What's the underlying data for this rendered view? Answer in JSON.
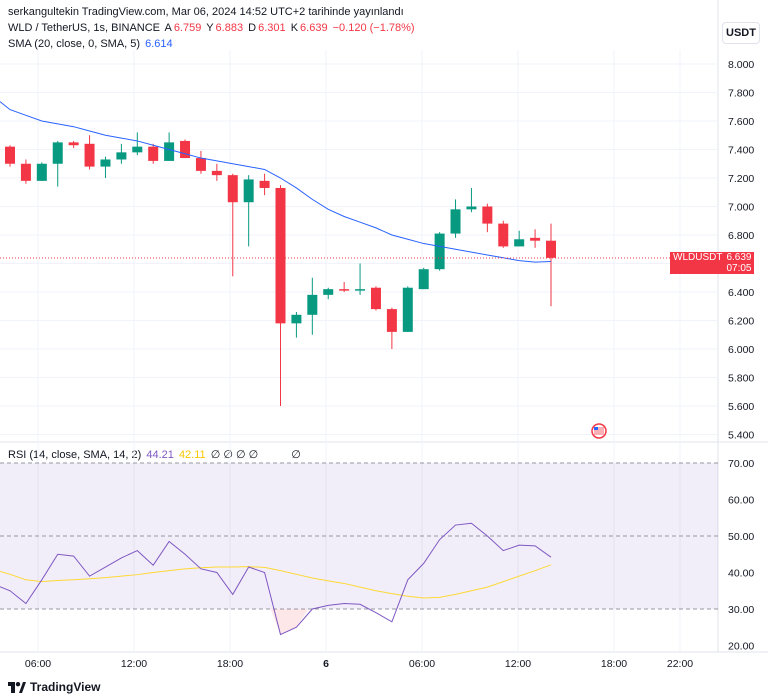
{
  "header": {
    "publish_text": "serkangultekin TradingView.com, Mar 06, 2024 14:52 UTC+2 tarihinde yayınlandı"
  },
  "legend": {
    "symbol": "WLD / TetherUS, 1s, BINANCE",
    "open_label": "A",
    "open": "6.759",
    "high_label": "Y",
    "high": "6.883",
    "low_label": "D",
    "low": "6.301",
    "close_label": "K",
    "close": "6.639",
    "change": "−0.120 (−1.78%)",
    "sma_label": "SMA (20, close, 0, SMA, 5)",
    "sma_value": "6.614"
  },
  "currency_button": "USDT",
  "last_price_tag": {
    "symbol": "WLDUSDT",
    "price": "6.639",
    "countdown": "07:05"
  },
  "rsi_legend": {
    "label": "RSI (14, close, SMA, 14, 2)",
    "rsi_value": "44.21",
    "ma_value": "42.11",
    "placeholders": "∅ ∅ ∅ ∅",
    "placeholder2": "∅"
  },
  "footer": {
    "brand": "TradingView"
  },
  "colors": {
    "up": "#089981",
    "down": "#f23645",
    "sma": "#2962ff",
    "rsi": "#7e57c2",
    "rsi_ma": "#fdd835",
    "rsi_band": "#7e57c2"
  },
  "chart_data": [
    {
      "type": "candlestick",
      "title": "WLD / TetherUS, 1s, BINANCE",
      "ylim": [
        5.35,
        8.1
      ],
      "y_ticks": [
        "8.000",
        "7.800",
        "7.600",
        "7.400",
        "7.200",
        "7.000",
        "6.800",
        "6.600",
        "6.400",
        "6.200",
        "6.000",
        "5.800",
        "5.600",
        "5.400"
      ],
      "x_ticks": [
        "06:00",
        "12:00",
        "18:00",
        "6",
        "06:00",
        "12:00",
        "18:00",
        "22:00"
      ],
      "candles": [
        {
          "o": 7.42,
          "h": 7.43,
          "l": 7.28,
          "c": 7.3
        },
        {
          "o": 7.3,
          "h": 7.33,
          "l": 7.16,
          "c": 7.18
        },
        {
          "o": 7.18,
          "h": 7.31,
          "l": 7.18,
          "c": 7.3
        },
        {
          "o": 7.3,
          "h": 7.46,
          "l": 7.14,
          "c": 7.45
        },
        {
          "o": 7.45,
          "h": 7.46,
          "l": 7.41,
          "c": 7.43
        },
        {
          "o": 7.44,
          "h": 7.5,
          "l": 7.26,
          "c": 7.28
        },
        {
          "o": 7.28,
          "h": 7.35,
          "l": 7.2,
          "c": 7.33
        },
        {
          "o": 7.33,
          "h": 7.44,
          "l": 7.3,
          "c": 7.38
        },
        {
          "o": 7.38,
          "h": 7.52,
          "l": 7.36,
          "c": 7.42
        },
        {
          "o": 7.42,
          "h": 7.44,
          "l": 7.3,
          "c": 7.32
        },
        {
          "o": 7.32,
          "h": 7.52,
          "l": 7.32,
          "c": 7.45
        },
        {
          "o": 7.46,
          "h": 7.47,
          "l": 7.34,
          "c": 7.34
        },
        {
          "o": 7.34,
          "h": 7.39,
          "l": 7.23,
          "c": 7.25
        },
        {
          "o": 7.25,
          "h": 7.3,
          "l": 7.18,
          "c": 7.22
        },
        {
          "o": 7.22,
          "h": 7.23,
          "l": 6.51,
          "c": 7.03
        },
        {
          "o": 7.03,
          "h": 7.22,
          "l": 6.72,
          "c": 7.19
        },
        {
          "o": 7.18,
          "h": 7.23,
          "l": 7.08,
          "c": 7.13
        },
        {
          "o": 7.13,
          "h": 7.15,
          "l": 5.6,
          "c": 6.18
        },
        {
          "o": 6.18,
          "h": 6.26,
          "l": 6.08,
          "c": 6.24
        },
        {
          "o": 6.24,
          "h": 6.5,
          "l": 6.1,
          "c": 6.38
        },
        {
          "o": 6.38,
          "h": 6.43,
          "l": 6.35,
          "c": 6.42
        },
        {
          "o": 6.42,
          "h": 6.47,
          "l": 6.4,
          "c": 6.41
        },
        {
          "o": 6.42,
          "h": 6.6,
          "l": 6.38,
          "c": 6.42
        },
        {
          "o": 6.43,
          "h": 6.44,
          "l": 6.27,
          "c": 6.28
        },
        {
          "o": 6.28,
          "h": 6.29,
          "l": 6.0,
          "c": 6.12
        },
        {
          "o": 6.12,
          "h": 6.44,
          "l": 6.12,
          "c": 6.43
        },
        {
          "o": 6.42,
          "h": 6.57,
          "l": 6.42,
          "c": 6.56
        },
        {
          "o": 6.56,
          "h": 6.82,
          "l": 6.55,
          "c": 6.81
        },
        {
          "o": 6.81,
          "h": 7.05,
          "l": 6.78,
          "c": 6.98
        },
        {
          "o": 6.98,
          "h": 7.13,
          "l": 6.96,
          "c": 7.0
        },
        {
          "o": 7.0,
          "h": 7.02,
          "l": 6.82,
          "c": 6.88
        },
        {
          "o": 6.88,
          "h": 6.9,
          "l": 6.71,
          "c": 6.72
        },
        {
          "o": 6.72,
          "h": 6.83,
          "l": 6.72,
          "c": 6.77
        },
        {
          "o": 6.78,
          "h": 6.84,
          "l": 6.71,
          "c": 6.76
        },
        {
          "o": 6.76,
          "h": 6.88,
          "l": 6.3,
          "c": 6.64
        }
      ],
      "sma": [
        7.68,
        7.64,
        7.6,
        7.58,
        7.56,
        7.53,
        7.5,
        7.48,
        7.46,
        7.43,
        7.4,
        7.37,
        7.34,
        7.32,
        7.3,
        7.28,
        7.26,
        7.2,
        7.13,
        7.05,
        6.98,
        6.93,
        6.89,
        6.85,
        6.8,
        6.77,
        6.74,
        6.72,
        6.7,
        6.68,
        6.66,
        6.64,
        6.62,
        6.61,
        6.614
      ],
      "last_price": 6.639
    },
    {
      "type": "line",
      "title": "RSI (14, close, SMA, 14, 2)",
      "ylim": [
        17,
        73
      ],
      "y_ticks": [
        "70.00",
        "60.00",
        "50.00",
        "40.00",
        "30.00",
        "20.00"
      ],
      "bands": [
        70,
        50,
        30
      ],
      "series": [
        {
          "name": "RSI",
          "values": [
            35,
            31.5,
            38,
            45,
            44.5,
            39,
            41.5,
            44,
            46,
            42,
            48.5,
            45,
            41,
            40,
            34,
            41.5,
            40,
            23,
            25,
            30,
            31,
            31.5,
            31.3,
            29,
            26.5,
            38,
            42.5,
            49,
            53,
            53.5,
            50,
            46,
            47.5,
            47.3,
            44.2
          ]
        },
        {
          "name": "RSI MA",
          "values": [
            39.5,
            38,
            37.5,
            37.8,
            38,
            38.3,
            38.6,
            39,
            39.4,
            40,
            40.5,
            41,
            41.3,
            41.5,
            41.5,
            41.6,
            41.4,
            40.5,
            39.5,
            38.5,
            37.7,
            37,
            36,
            35,
            34.2,
            33.5,
            33,
            33.2,
            34,
            35,
            36,
            37.5,
            39,
            40.5,
            42.1
          ]
        }
      ]
    }
  ]
}
